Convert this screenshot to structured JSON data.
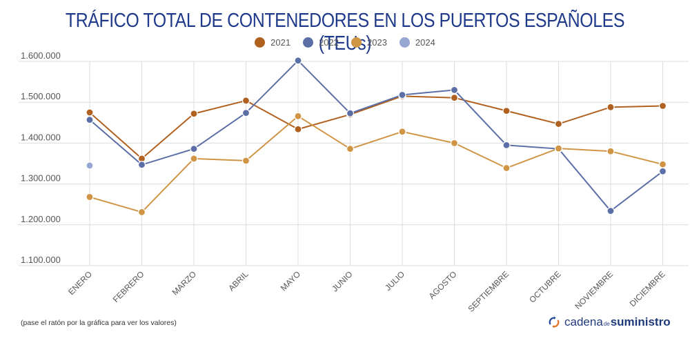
{
  "chart_data": {
    "type": "line",
    "title": "TRÁFICO TOTAL DE CONTENEDORES EN LOS PUERTOS ESPAÑOLES (TEUs)",
    "xlabel": "",
    "ylabel": "",
    "categories": [
      "ENERO",
      "FEBRERO",
      "MARZO",
      "ABRIL",
      "MAYO",
      "JUNIO",
      "JULIO",
      "AGOSTO",
      "SEPTIEMBRE",
      "OCTUBRE",
      "NOVIEMBRE",
      "DICIEMBRE"
    ],
    "ylim": [
      1100000,
      1600000
    ],
    "yticks": [
      1100000,
      1200000,
      1300000,
      1400000,
      1500000,
      1600000
    ],
    "ytick_labels": [
      "1.100.000",
      "1.200.000",
      "1.300.000",
      "1.400.000",
      "1.500.000",
      "1.600.000"
    ],
    "grid": true,
    "legend_position": "top-center",
    "series": [
      {
        "name": "2021",
        "color": "#b0601f",
        "values": [
          1475000,
          1362000,
          1472000,
          1504000,
          1434000,
          1470000,
          1515000,
          1511000,
          1479000,
          1447000,
          1488000,
          1491000
        ]
      },
      {
        "name": "2022",
        "color": "#5b6ea6",
        "values": [
          1457000,
          1347000,
          1386000,
          1474000,
          1602000,
          1473000,
          1518000,
          1530000,
          1395000,
          1386000,
          1234000,
          1331000
        ]
      },
      {
        "name": "2023",
        "color": "#d09445",
        "values": [
          1268000,
          1231000,
          1362000,
          1357000,
          1466000,
          1386000,
          1428000,
          1400000,
          1339000,
          1387000,
          1380000,
          1348000
        ]
      },
      {
        "name": "2024",
        "color": "#96a6d2",
        "values": [
          1345000,
          null,
          null,
          null,
          null,
          null,
          null,
          null,
          null,
          null,
          null,
          null
        ]
      }
    ]
  },
  "footnote": "(pase el ratón por la gráfica para ver los valores)",
  "logo": {
    "part1": "cadena",
    "part2": "de",
    "part3": "suministro",
    "icon": "circular-arrows-icon"
  }
}
